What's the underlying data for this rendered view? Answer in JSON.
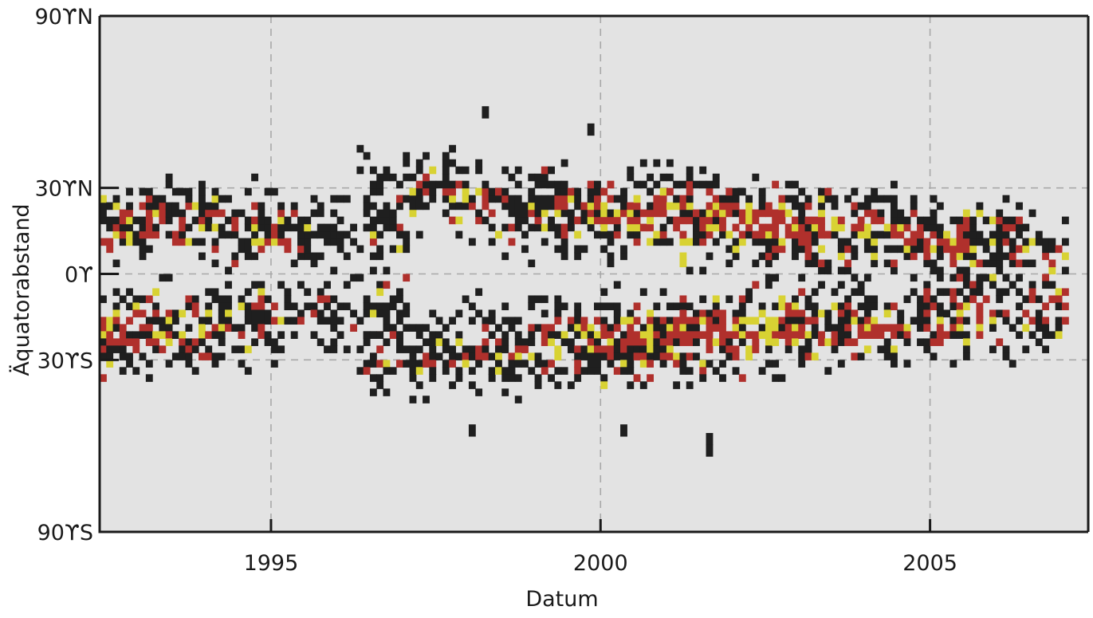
{
  "chart_data": {
    "type": "heatmap",
    "title": "",
    "xlabel": "Datum",
    "ylabel": "Äquatorabstand",
    "xlim": [
      1992.4,
      2007.4
    ],
    "ylim": [
      -90,
      90
    ],
    "x_ticks": [
      {
        "value": 1995,
        "label": "1995"
      },
      {
        "value": 2000,
        "label": "2000"
      },
      {
        "value": 2005,
        "label": "2005"
      }
    ],
    "y_ticks": [
      {
        "value": 90,
        "label": "90ϒN"
      },
      {
        "value": 30,
        "label": "30ϒN"
      },
      {
        "value": 0,
        "label": "0ϒ"
      },
      {
        "value": -30,
        "label": "30ϒS"
      },
      {
        "value": -90,
        "label": "90ϒS"
      }
    ],
    "grid": true,
    "colors": {
      "background": "#e3e3e3",
      "axis": "#1a1a1a",
      "grid": "#a8a8a8",
      "low": "#1f1f1f",
      "medium": "#b0302c",
      "high": "#d8d233"
    },
    "cells": {
      "x_step_years": 0.1,
      "y_step_degrees": 2.5,
      "levels": [
        "low",
        "medium",
        "high"
      ],
      "bands": [
        {
          "hemisphere": "N",
          "x": [
            1992.4,
            1997.0
          ],
          "lat_center": [
            18,
            12
          ],
          "lat_width": 11,
          "density": [
            0.8,
            0.5
          ],
          "intensity": [
            0.55,
            0.1
          ]
        },
        {
          "hemisphere": "S",
          "x": [
            1992.4,
            1997.0
          ],
          "lat_center": [
            -20,
            -10
          ],
          "lat_width": 11,
          "density": [
            0.8,
            0.5
          ],
          "intensity": [
            0.6,
            0.1
          ]
        },
        {
          "hemisphere": "N",
          "x": [
            1996.3,
            2007.0
          ],
          "lat_center": [
            28,
            8
          ],
          "lat_width": 12,
          "density": [
            0.55,
            0.9,
            0.55
          ],
          "intensity": [
            0.1,
            0.75,
            0.35
          ]
        },
        {
          "hemisphere": "S",
          "x": [
            1996.3,
            2007.0
          ],
          "lat_center": [
            -28,
            -10
          ],
          "lat_width": 12,
          "density": [
            0.55,
            0.9,
            0.55
          ],
          "intensity": [
            0.1,
            0.75,
            0.35
          ]
        }
      ]
    }
  }
}
